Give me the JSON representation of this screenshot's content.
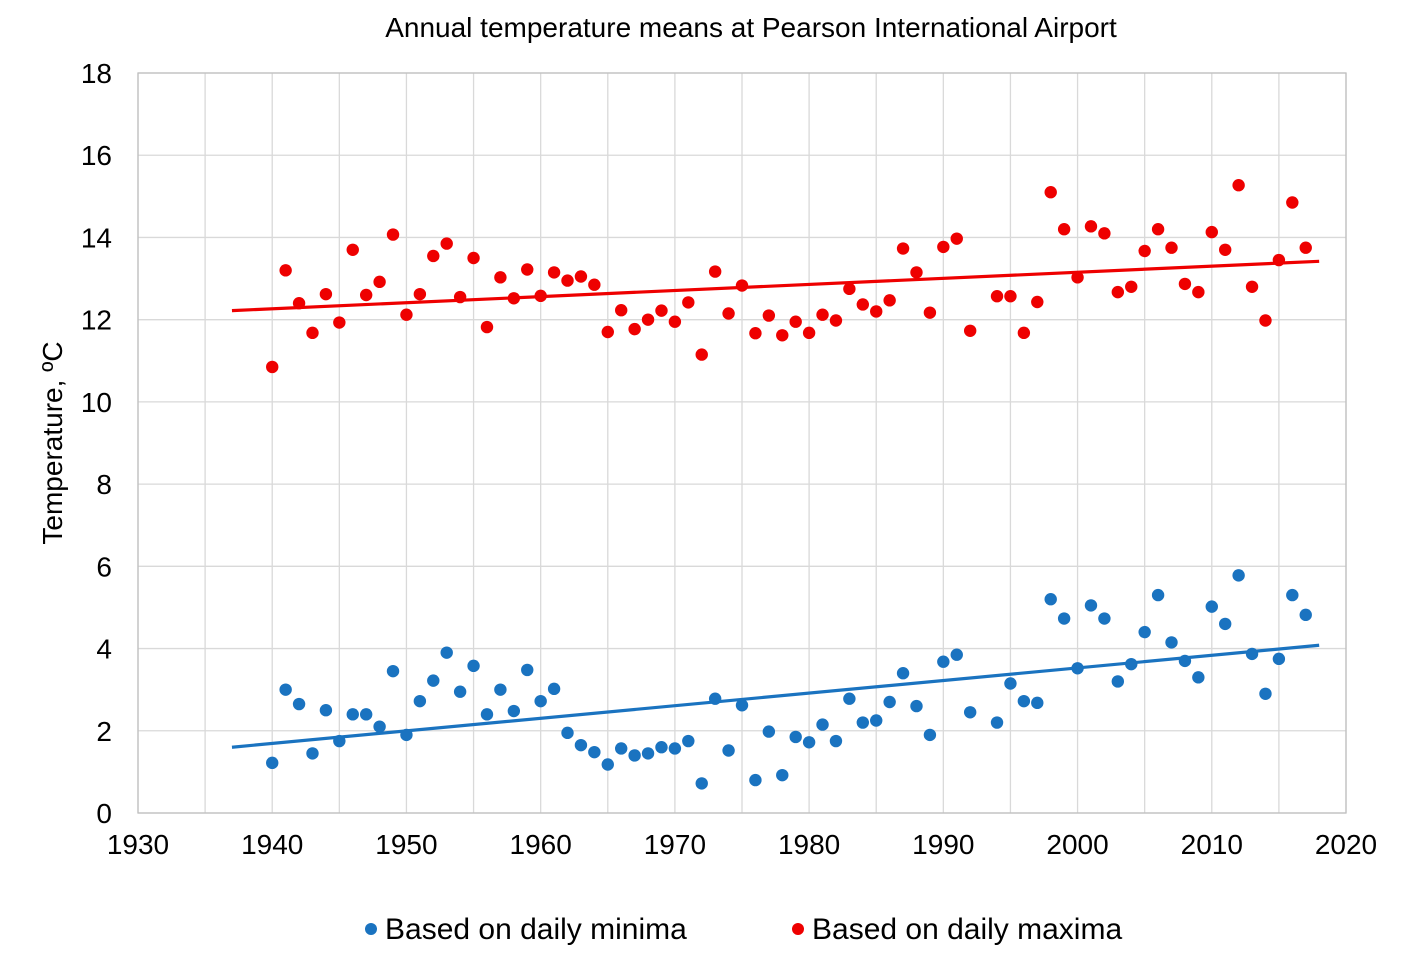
{
  "colors": {
    "minima": "#1a73c0",
    "maxima": "#ee0000"
  },
  "chart_data": {
    "type": "scatter",
    "title": "Annual temperature means at Pearson International Airport",
    "xlabel": "",
    "ylabel": "Temperature, ºC",
    "xlim": [
      1930,
      2020
    ],
    "ylim": [
      0,
      18
    ],
    "x_ticks": [
      1930,
      1940,
      1950,
      1960,
      1970,
      1980,
      1990,
      2000,
      2010,
      2020
    ],
    "y_ticks": [
      0,
      2,
      4,
      6,
      8,
      10,
      12,
      14,
      16,
      18
    ],
    "grid": true,
    "legend_position": "bottom",
    "series": [
      {
        "name": "Based on daily minima",
        "color": "#1a73c0",
        "trendline": {
          "x": [
            1937,
            2018
          ],
          "y": [
            1.6,
            4.08
          ]
        },
        "points": [
          [
            1940,
            1.22
          ],
          [
            1941,
            3.0
          ],
          [
            1942,
            2.65
          ],
          [
            1943,
            1.45
          ],
          [
            1944,
            2.5
          ],
          [
            1945,
            1.75
          ],
          [
            1946,
            2.4
          ],
          [
            1947,
            2.4
          ],
          [
            1948,
            2.1
          ],
          [
            1949,
            3.45
          ],
          [
            1950,
            1.9
          ],
          [
            1951,
            2.72
          ],
          [
            1952,
            3.22
          ],
          [
            1953,
            3.9
          ],
          [
            1954,
            2.95
          ],
          [
            1955,
            3.58
          ],
          [
            1956,
            2.4
          ],
          [
            1957,
            3.0
          ],
          [
            1958,
            2.48
          ],
          [
            1959,
            3.48
          ],
          [
            1960,
            2.72
          ],
          [
            1961,
            3.02
          ],
          [
            1962,
            1.95
          ],
          [
            1963,
            1.65
          ],
          [
            1964,
            1.48
          ],
          [
            1965,
            1.18
          ],
          [
            1966,
            1.57
          ],
          [
            1967,
            1.4
          ],
          [
            1968,
            1.45
          ],
          [
            1969,
            1.6
          ],
          [
            1970,
            1.57
          ],
          [
            1971,
            1.75
          ],
          [
            1972,
            0.72
          ],
          [
            1973,
            2.78
          ],
          [
            1974,
            1.52
          ],
          [
            1975,
            2.62
          ],
          [
            1976,
            0.8
          ],
          [
            1977,
            1.98
          ],
          [
            1978,
            0.92
          ],
          [
            1979,
            1.85
          ],
          [
            1980,
            1.72
          ],
          [
            1981,
            2.15
          ],
          [
            1982,
            1.75
          ],
          [
            1983,
            2.78
          ],
          [
            1984,
            2.2
          ],
          [
            1985,
            2.25
          ],
          [
            1986,
            2.7
          ],
          [
            1987,
            3.4
          ],
          [
            1988,
            2.6
          ],
          [
            1989,
            1.9
          ],
          [
            1990,
            3.68
          ],
          [
            1991,
            3.85
          ],
          [
            1992,
            2.45
          ],
          [
            1994,
            2.2
          ],
          [
            1995,
            3.15
          ],
          [
            1996,
            2.72
          ],
          [
            1997,
            2.68
          ],
          [
            1998,
            5.2
          ],
          [
            1999,
            4.73
          ],
          [
            2000,
            3.52
          ],
          [
            2001,
            5.05
          ],
          [
            2002,
            4.73
          ],
          [
            2003,
            3.2
          ],
          [
            2004,
            3.62
          ],
          [
            2005,
            4.4
          ],
          [
            2006,
            5.3
          ],
          [
            2007,
            4.15
          ],
          [
            2008,
            3.7
          ],
          [
            2009,
            3.3
          ],
          [
            2010,
            5.02
          ],
          [
            2011,
            4.6
          ],
          [
            2012,
            5.78
          ],
          [
            2013,
            3.87
          ],
          [
            2014,
            2.9
          ],
          [
            2015,
            3.75
          ],
          [
            2016,
            5.3
          ],
          [
            2017,
            4.82
          ]
        ]
      },
      {
        "name": "Based on daily maxima",
        "color": "#ee0000",
        "trendline": {
          "x": [
            1937,
            2018
          ],
          "y": [
            12.22,
            13.42
          ]
        },
        "points": [
          [
            1940,
            10.85
          ],
          [
            1941,
            13.2
          ],
          [
            1942,
            12.4
          ],
          [
            1943,
            11.68
          ],
          [
            1944,
            12.62
          ],
          [
            1945,
            11.93
          ],
          [
            1946,
            13.7
          ],
          [
            1947,
            12.6
          ],
          [
            1948,
            12.92
          ],
          [
            1949,
            14.07
          ],
          [
            1950,
            12.12
          ],
          [
            1951,
            12.62
          ],
          [
            1952,
            13.55
          ],
          [
            1953,
            13.85
          ],
          [
            1954,
            12.55
          ],
          [
            1955,
            13.5
          ],
          [
            1956,
            11.82
          ],
          [
            1957,
            13.03
          ],
          [
            1958,
            12.52
          ],
          [
            1959,
            13.22
          ],
          [
            1960,
            12.58
          ],
          [
            1961,
            13.15
          ],
          [
            1962,
            12.95
          ],
          [
            1963,
            13.05
          ],
          [
            1964,
            12.85
          ],
          [
            1965,
            11.7
          ],
          [
            1966,
            12.23
          ],
          [
            1967,
            11.77
          ],
          [
            1968,
            12.0
          ],
          [
            1969,
            12.22
          ],
          [
            1970,
            11.95
          ],
          [
            1971,
            12.42
          ],
          [
            1972,
            11.15
          ],
          [
            1973,
            13.17
          ],
          [
            1974,
            12.15
          ],
          [
            1975,
            12.83
          ],
          [
            1976,
            11.67
          ],
          [
            1977,
            12.1
          ],
          [
            1978,
            11.62
          ],
          [
            1979,
            11.95
          ],
          [
            1980,
            11.68
          ],
          [
            1981,
            12.12
          ],
          [
            1982,
            11.98
          ],
          [
            1983,
            12.75
          ],
          [
            1984,
            12.37
          ],
          [
            1985,
            12.2
          ],
          [
            1986,
            12.47
          ],
          [
            1987,
            13.73
          ],
          [
            1988,
            13.15
          ],
          [
            1989,
            12.17
          ],
          [
            1990,
            13.77
          ],
          [
            1991,
            13.97
          ],
          [
            1992,
            11.73
          ],
          [
            1994,
            12.57
          ],
          [
            1995,
            12.57
          ],
          [
            1996,
            11.68
          ],
          [
            1997,
            12.43
          ],
          [
            1998,
            15.1
          ],
          [
            1999,
            14.2
          ],
          [
            2000,
            13.03
          ],
          [
            2001,
            14.27
          ],
          [
            2002,
            14.1
          ],
          [
            2003,
            12.67
          ],
          [
            2004,
            12.8
          ],
          [
            2005,
            13.67
          ],
          [
            2006,
            14.2
          ],
          [
            2007,
            13.75
          ],
          [
            2008,
            12.87
          ],
          [
            2009,
            12.67
          ],
          [
            2010,
            14.13
          ],
          [
            2011,
            13.7
          ],
          [
            2012,
            15.27
          ],
          [
            2013,
            12.8
          ],
          [
            2014,
            11.98
          ],
          [
            2015,
            13.45
          ],
          [
            2016,
            14.85
          ],
          [
            2017,
            13.75
          ]
        ]
      }
    ]
  }
}
